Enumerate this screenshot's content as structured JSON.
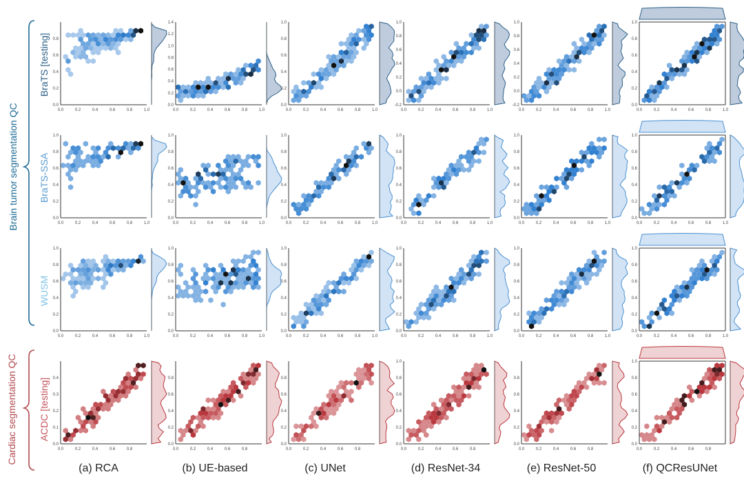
{
  "chart_data": {
    "type": "heatmap",
    "subtype": "hexbin-jointplot-grid",
    "colors": {
      "blue": "#2f7fd0",
      "red": "#b8353b",
      "dark": "#111111"
    },
    "groups": [
      {
        "label": "Brain tumor segmentation QC",
        "rows": [
          0,
          1,
          2
        ],
        "color": "#1e6b95"
      },
      {
        "label": "Cardiac segmentation QC",
        "rows": [
          3
        ],
        "color": "#b24b50"
      }
    ],
    "columns": [
      {
        "label": "(a) RCA"
      },
      {
        "label": "(b) UE-based"
      },
      {
        "label": "(c) UNet"
      },
      {
        "label": "(d) ResNet-34"
      },
      {
        "label": "(e) ResNet-50"
      },
      {
        "label": "(f) QCResUNet"
      }
    ],
    "rows": [
      {
        "label": "BraTS [testing]",
        "label_color": "#2c5f86",
        "palette": "blue",
        "panels": [
          {
            "xlim": [
              0,
              1
            ],
            "ylim": [
              0,
              1
            ],
            "xticks": [
              "0.0",
              "0.2",
              "0.4",
              "0.6",
              "0.8",
              "1.0"
            ],
            "yticks": [
              "0.0",
              "0.2",
              "0.4",
              "0.6",
              "0.8"
            ],
            "relation": "plateau",
            "level": 0.9,
            "n": 180,
            "seed": 11
          },
          {
            "xlim": [
              0,
              1
            ],
            "ylim": [
              0,
              1.4
            ],
            "xticks": [
              "0.0",
              "0.2",
              "0.4",
              "0.6",
              "0.8",
              "1.0"
            ],
            "yticks": [
              "0.0",
              "0.2",
              "0.4",
              "0.6",
              "0.8",
              "1.0",
              "1.2",
              "1.4"
            ],
            "relation": "rise",
            "level": 0.22,
            "n": 150,
            "seed": 12
          },
          {
            "xlim": [
              0,
              1
            ],
            "ylim": [
              0,
              1
            ],
            "xticks": [
              "0.0",
              "0.2",
              "0.4",
              "0.6",
              "0.8",
              "1.0"
            ],
            "yticks": [
              "0.0",
              "0.2",
              "0.4",
              "0.6",
              "0.8",
              "1.0"
            ],
            "relation": "linear",
            "n": 170,
            "seed": 13
          },
          {
            "xlim": [
              0,
              1
            ],
            "ylim": [
              -0.2,
              1
            ],
            "xticks": [
              "0.0",
              "0.2",
              "0.4",
              "0.6",
              "0.8",
              "1.0"
            ],
            "yticks": [
              "-0.2",
              "0.0",
              "0.2",
              "0.4",
              "0.6",
              "0.8",
              "1.0"
            ],
            "relation": "linear",
            "n": 170,
            "seed": 14
          },
          {
            "xlim": [
              0,
              1
            ],
            "ylim": [
              -0.2,
              1
            ],
            "xticks": [
              "0.0",
              "0.2",
              "0.4",
              "0.6",
              "0.8",
              "1.0"
            ],
            "yticks": [
              "-0.2",
              "0.0",
              "0.2",
              "0.4",
              "0.6",
              "0.8",
              "1.0"
            ],
            "relation": "linear",
            "n": 170,
            "seed": 15
          },
          {
            "xlim": [
              0,
              1
            ],
            "ylim": [
              0,
              1
            ],
            "xticks": [
              "0.0",
              "0.2",
              "0.4",
              "0.6",
              "0.8",
              "1.0"
            ],
            "yticks": [
              "0.0",
              "0.2",
              "0.4",
              "0.6",
              "0.8",
              "1.0"
            ],
            "relation": "linear",
            "n": 170,
            "seed": 16
          }
        ]
      },
      {
        "label": "BraTS-SSA",
        "label_color": "#5a9bd0",
        "palette": "blue",
        "panels": [
          {
            "xlim": [
              0,
              1
            ],
            "ylim": [
              0,
              1
            ],
            "xticks": [
              "0.0",
              "0.2",
              "0.4",
              "0.6",
              "0.8",
              "1.0"
            ],
            "yticks": [
              "0.0",
              "0.2",
              "0.4",
              "0.6",
              "0.8",
              "1.0"
            ],
            "relation": "plateau",
            "level": 0.9,
            "n": 90,
            "seed": 21
          },
          {
            "xlim": [
              0,
              1
            ],
            "ylim": [
              0,
              1
            ],
            "xticks": [
              "0.0",
              "0.2",
              "0.4",
              "0.6",
              "0.8",
              "1.0"
            ],
            "yticks": [
              "0.0",
              "0.2",
              "0.4",
              "0.6",
              "0.8",
              "1.0"
            ],
            "relation": "band",
            "level": 0.5,
            "n": 120,
            "seed": 22
          },
          {
            "xlim": [
              0,
              1
            ],
            "ylim": [
              0,
              1
            ],
            "xticks": [
              "0.0",
              "0.2",
              "0.4",
              "0.6",
              "0.8",
              "1.0"
            ],
            "yticks": [
              "0.0",
              "0.2",
              "0.4",
              "0.6",
              "0.8",
              "1.0"
            ],
            "relation": "linear",
            "n": 100,
            "seed": 23
          },
          {
            "xlim": [
              0,
              1
            ],
            "ylim": [
              0,
              1
            ],
            "xticks": [
              "0.0",
              "0.2",
              "0.4",
              "0.6",
              "0.8",
              "1.0"
            ],
            "yticks": [
              "0.0",
              "0.2",
              "0.4",
              "0.6",
              "0.8",
              "1.0"
            ],
            "relation": "linear",
            "n": 100,
            "seed": 24
          },
          {
            "xlim": [
              0,
              1
            ],
            "ylim": [
              0,
              1
            ],
            "xticks": [
              "0.0",
              "0.2",
              "0.4",
              "0.6",
              "0.8",
              "1.0"
            ],
            "yticks": [
              "0.0",
              "0.2",
              "0.4",
              "0.6",
              "0.8",
              "1.0"
            ],
            "relation": "linear",
            "n": 100,
            "seed": 25
          },
          {
            "xlim": [
              0,
              1
            ],
            "ylim": [
              0,
              1
            ],
            "xticks": [
              "0.0",
              "0.2",
              "0.4",
              "0.6",
              "0.8",
              "1.0"
            ],
            "yticks": [
              "0.0",
              "0.2",
              "0.4",
              "0.6",
              "0.8",
              "1.0"
            ],
            "relation": "linear",
            "n": 100,
            "seed": 26
          }
        ]
      },
      {
        "label": "WUSM",
        "label_color": "#7fc3e8",
        "palette": "blue",
        "panels": [
          {
            "xlim": [
              0,
              1
            ],
            "ylim": [
              0,
              1
            ],
            "xticks": [
              "0.0",
              "0.2",
              "0.4",
              "0.6",
              "0.8",
              "1.0"
            ],
            "yticks": [
              "0.0",
              "0.2",
              "0.4",
              "0.6",
              "0.8",
              "1.0"
            ],
            "relation": "plateau",
            "level": 0.88,
            "n": 160,
            "seed": 31
          },
          {
            "xlim": [
              0,
              1
            ],
            "ylim": [
              0,
              1
            ],
            "xticks": [
              "0.0",
              "0.2",
              "0.4",
              "0.6",
              "0.8",
              "1.0"
            ],
            "yticks": [
              "0.0",
              "0.2",
              "0.4",
              "0.6",
              "0.8",
              "1.0"
            ],
            "relation": "band",
            "level": 0.62,
            "n": 150,
            "seed": 32
          },
          {
            "xlim": [
              0,
              1
            ],
            "ylim": [
              0,
              1
            ],
            "xticks": [
              "0.0",
              "0.2",
              "0.4",
              "0.6",
              "0.8",
              "1.0"
            ],
            "yticks": [
              "0.0",
              "0.2",
              "0.4",
              "0.6",
              "0.8",
              "1.0"
            ],
            "relation": "linear",
            "n": 150,
            "seed": 33
          },
          {
            "xlim": [
              0,
              1
            ],
            "ylim": [
              0,
              1
            ],
            "xticks": [
              "0.0",
              "0.2",
              "0.4",
              "0.6",
              "0.8",
              "1.0"
            ],
            "yticks": [
              "0.0",
              "0.2",
              "0.4",
              "0.6",
              "0.8",
              "1.0"
            ],
            "relation": "linear",
            "n": 150,
            "seed": 34
          },
          {
            "xlim": [
              0,
              1
            ],
            "ylim": [
              0,
              1
            ],
            "xticks": [
              "0.0",
              "0.2",
              "0.4",
              "0.6",
              "0.8",
              "1.0"
            ],
            "yticks": [
              "0.0",
              "0.2",
              "0.4",
              "0.6",
              "0.8",
              "1.0"
            ],
            "relation": "linear",
            "n": 150,
            "seed": 35
          },
          {
            "xlim": [
              0,
              1
            ],
            "ylim": [
              0,
              1
            ],
            "xticks": [
              "0.0",
              "0.2",
              "0.4",
              "0.6",
              "0.8",
              "1.0"
            ],
            "yticks": [
              "0.0",
              "0.2",
              "0.4",
              "0.6",
              "0.8",
              "1.0"
            ],
            "relation": "linear",
            "n": 150,
            "seed": 36
          }
        ]
      },
      {
        "label": "ACDC [testing]",
        "label_color": "#c2525a",
        "palette": "red",
        "panels": [
          {
            "xlim": [
              0,
              1
            ],
            "ylim": [
              0,
              0.5
            ],
            "xticks": [
              "0.0",
              "0.2",
              "0.4",
              "0.6",
              "0.8"
            ],
            "yticks": [
              "0.0",
              "0.1",
              "0.2",
              "0.3",
              "0.4"
            ],
            "relation": "linear",
            "n": 120,
            "seed": 41
          },
          {
            "xlim": [
              0,
              1
            ],
            "ylim": [
              0,
              1
            ],
            "xticks": [
              "0.0",
              "0.2",
              "0.4",
              "0.6",
              "0.8"
            ],
            "yticks": [
              "0.0",
              "0.2",
              "0.4",
              "0.6",
              "0.8"
            ],
            "relation": "linear",
            "n": 140,
            "seed": 42
          },
          {
            "xlim": [
              0,
              1
            ],
            "ylim": [
              0,
              1
            ],
            "xticks": [
              "0.0",
              "0.2",
              "0.4",
              "0.6",
              "0.8"
            ],
            "yticks": [
              "0.0",
              "0.2",
              "0.4",
              "0.6",
              "0.8"
            ],
            "relation": "linear",
            "n": 130,
            "seed": 43
          },
          {
            "xlim": [
              0,
              1
            ],
            "ylim": [
              0,
              1
            ],
            "xticks": [
              "0.0",
              "0.2",
              "0.4",
              "0.6",
              "0.8"
            ],
            "yticks": [
              "0.0",
              "0.2",
              "0.4",
              "0.6",
              "0.8",
              "1.0"
            ],
            "relation": "linear",
            "n": 130,
            "seed": 44
          },
          {
            "xlim": [
              0,
              1
            ],
            "ylim": [
              0,
              1
            ],
            "xticks": [
              "0.0",
              "0.2",
              "0.4",
              "0.6",
              "0.8"
            ],
            "yticks": [
              "0.0",
              "0.2",
              "0.4",
              "0.6",
              "0.8"
            ],
            "relation": "linear",
            "n": 130,
            "seed": 45
          },
          {
            "xlim": [
              0,
              1
            ],
            "ylim": [
              0,
              1
            ],
            "xticks": [
              "0.0",
              "0.2",
              "0.4",
              "0.6",
              "0.8"
            ],
            "yticks": [
              "0.0",
              "0.2",
              "0.4",
              "0.6",
              "0.8",
              "1.0"
            ],
            "relation": "linear",
            "n": 130,
            "seed": 46
          }
        ]
      }
    ]
  }
}
